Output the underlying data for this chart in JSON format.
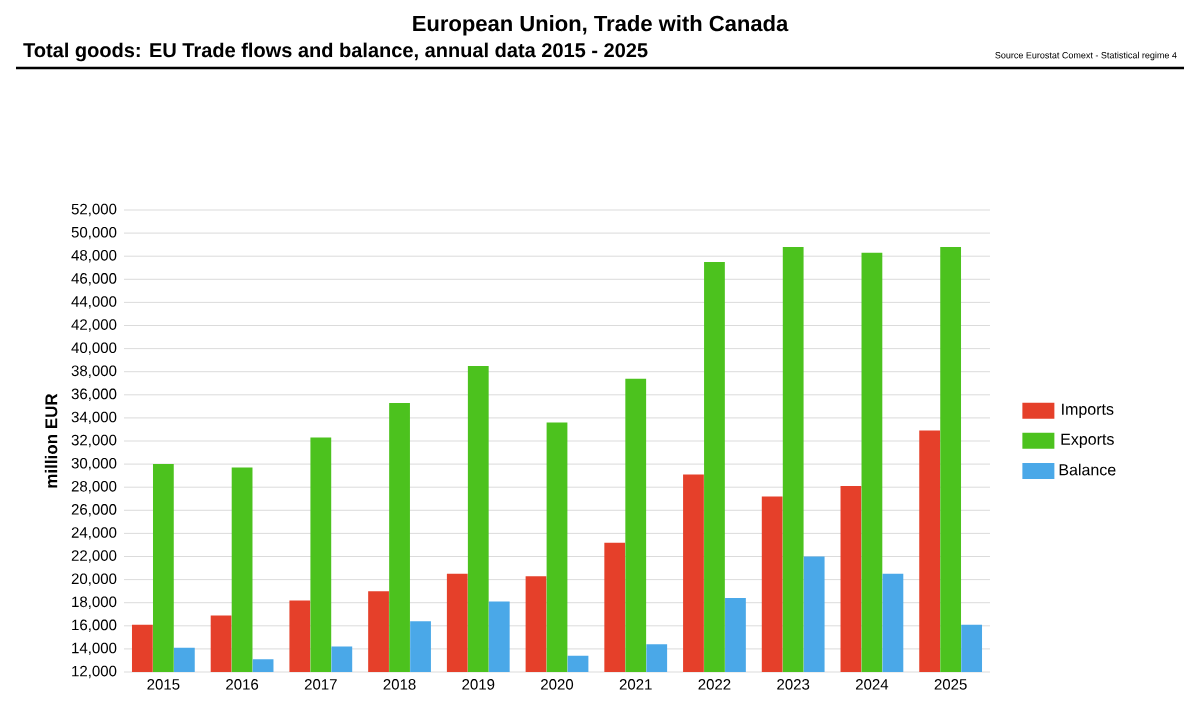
{
  "chart_data": {
    "type": "bar",
    "title": "European Union, Trade with Canada",
    "subtitle": "Total goods: EU Trade flows and balance, annual data 2015 - 2025",
    "annotations": [
      "Source Eurostat Comext  - Statistical regime 4"
    ],
    "ylabel": "million EUR",
    "categories": [
      "2015",
      "2016",
      "2017",
      "2018",
      "2019",
      "2020",
      "2021",
      "2022",
      "2023",
      "2024",
      "2025"
    ],
    "series": [
      {
        "name": "Imports",
        "color": "#e5402a",
        "values": [
          16100,
          16900,
          18200,
          19000,
          20500,
          20300,
          23200,
          29100,
          27200,
          28100,
          32900
        ]
      },
      {
        "name": "Exports",
        "color": "#4cc21e",
        "values": [
          30000,
          29700,
          32300,
          35300,
          38500,
          33600,
          37400,
          47500,
          48800,
          48300,
          48800
        ]
      },
      {
        "name": "Balance",
        "color": "#4aa8e8",
        "values": [
          14100,
          13100,
          14200,
          16400,
          18100,
          13400,
          14400,
          18400,
          22000,
          20500,
          16100
        ]
      }
    ],
    "ylim": [
      12000,
      52000
    ],
    "yticks": [
      {
        "value": 12000,
        "label": "12,000"
      },
      {
        "value": 14000,
        "label": "14,000"
      },
      {
        "value": 16000,
        "label": "16,000"
      },
      {
        "value": 18000,
        "label": "18,000"
      },
      {
        "value": 20000,
        "label": "20,000"
      },
      {
        "value": 22000,
        "label": "22,000"
      },
      {
        "value": 24000,
        "label": "24,000"
      },
      {
        "value": 26000,
        "label": "26,000"
      },
      {
        "value": 28000,
        "label": "28,000"
      },
      {
        "value": 30000,
        "label": "30,000"
      },
      {
        "value": 32000,
        "label": "32,000"
      },
      {
        "value": 34000,
        "label": "34,000"
      },
      {
        "value": 36000,
        "label": "36,000"
      },
      {
        "value": 38000,
        "label": "38,000"
      },
      {
        "value": 40000,
        "label": "40,000"
      },
      {
        "value": 42000,
        "label": "42,000"
      },
      {
        "value": 44000,
        "label": "44,000"
      },
      {
        "value": 46000,
        "label": "46,000"
      },
      {
        "value": 48000,
        "label": "48,000"
      },
      {
        "value": 50000,
        "label": "50,000"
      },
      {
        "value": 52000,
        "label": "52,000"
      }
    ],
    "grid": "y",
    "legend": "right"
  }
}
